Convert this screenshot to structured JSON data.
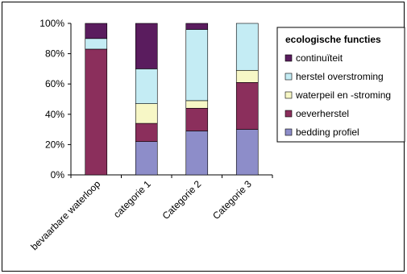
{
  "chart_data": {
    "type": "bar",
    "stacked": true,
    "categories": [
      "bevaarbare waterloop",
      "categorie 1",
      "Categorie 2",
      "Categorie 3"
    ],
    "series": [
      {
        "name": "bedding profiel",
        "color": "#8d8dc9",
        "values": [
          0,
          22,
          29,
          30
        ]
      },
      {
        "name": "oeverherstel",
        "color": "#8b2f5c",
        "values": [
          83,
          12,
          15,
          31
        ]
      },
      {
        "name": "waterpeil en -stroming",
        "color": "#f7f7c6",
        "values": [
          0,
          13,
          5,
          8
        ]
      },
      {
        "name": "herstel overstroming",
        "color": "#c4ecf4",
        "values": [
          7,
          23,
          47,
          31
        ]
      },
      {
        "name": "continuïteit",
        "color": "#5a1c5e",
        "values": [
          10,
          30,
          4,
          0
        ]
      }
    ],
    "ylim": [
      0,
      100
    ],
    "yticks": [
      "0%",
      "20%",
      "40%",
      "60%",
      "80%",
      "100%"
    ],
    "legend": {
      "title": "ecologische functies",
      "position": "right"
    },
    "grid": false
  }
}
